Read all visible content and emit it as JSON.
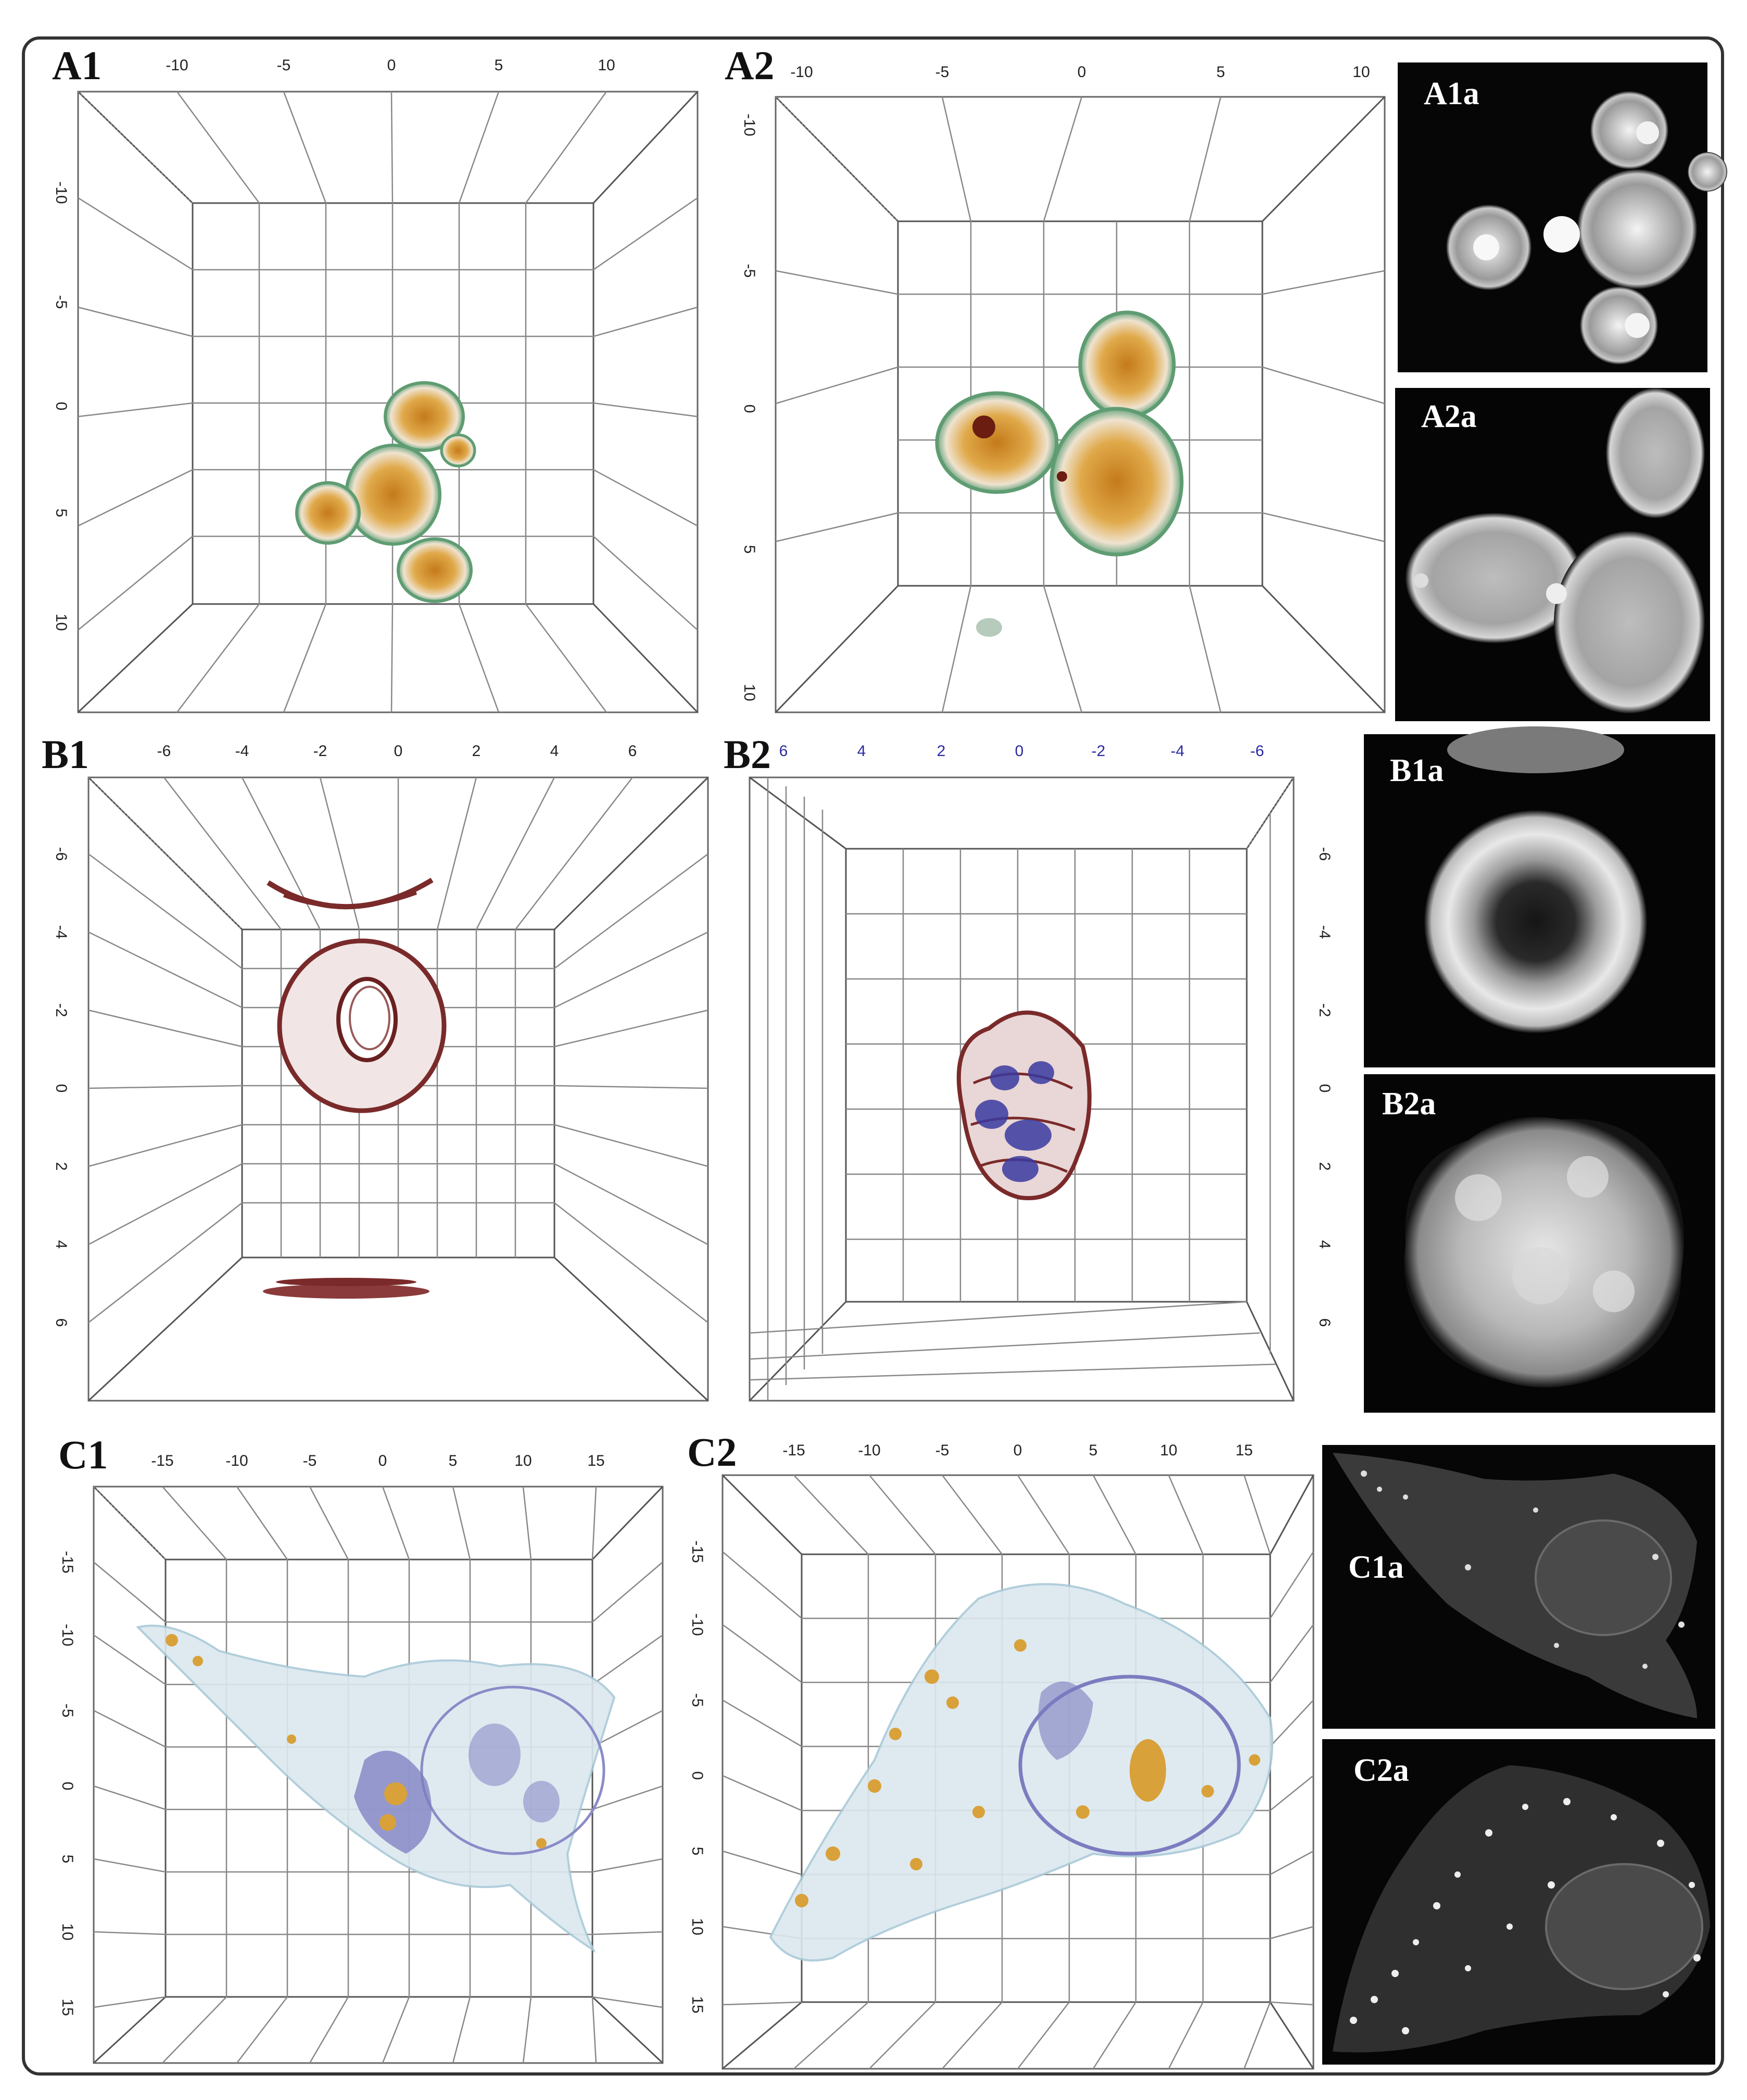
{
  "panels": {
    "A1": {
      "label": "A1",
      "ticks": [
        "-10",
        "-5",
        "0",
        "5",
        "10"
      ]
    },
    "A2": {
      "label": "A2",
      "ticks": [
        "-10",
        "-5",
        "0",
        "5",
        "10"
      ]
    },
    "B1": {
      "label": "B1",
      "ticks": [
        "-6",
        "-4",
        "-2",
        "0",
        "2",
        "4",
        "6"
      ]
    },
    "B2": {
      "label": "B2",
      "ticks_top": [
        "6",
        "4",
        "2",
        "0",
        "-2",
        "-4",
        "-6"
      ],
      "ticks_side": [
        "-6",
        "-4",
        "-2",
        "0",
        "2",
        "4",
        "6"
      ]
    },
    "C1": {
      "label": "C1",
      "ticks": [
        "-15",
        "-10",
        "-5",
        "0",
        "5",
        "10",
        "15"
      ]
    },
    "C2": {
      "label": "C2",
      "ticks": [
        "-15",
        "-10",
        "-5",
        "0",
        "5",
        "10",
        "15"
      ]
    }
  },
  "insets": {
    "A1a": "A1a",
    "A2a": "A2a",
    "B1a": "B1a",
    "B2a": "B2a",
    "C1a": "C1a",
    "C2a": "C2a"
  },
  "colors": {
    "cell_orange": "#d9a13a",
    "membrane_green": "#5f9c72",
    "rbc_brown": "#7a2a2a",
    "nucleus_blue": "#3a3aa0",
    "cytoplasm_lightblue": "#a9c9d8",
    "tick_blue": "#2a2aa0"
  }
}
